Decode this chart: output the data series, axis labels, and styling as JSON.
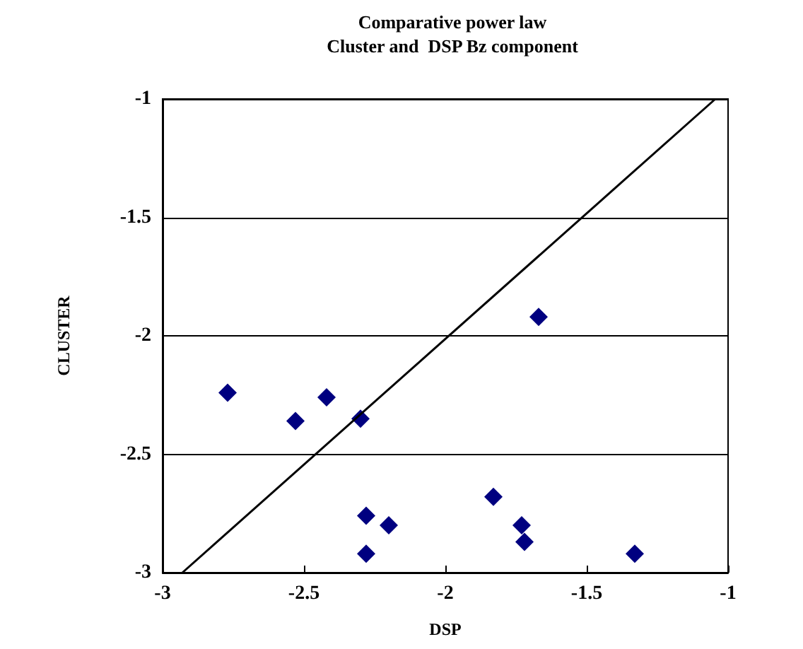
{
  "chart_data": {
    "type": "scatter",
    "title": "Comparative power law",
    "subtitle": "Cluster and  DSP Bz component",
    "xlabel": "DSP",
    "ylabel": "CLUSTER",
    "xlim": [
      -3,
      -1
    ],
    "xticks": [
      -3,
      -2.5,
      -2,
      -1.5,
      -1
    ],
    "ylim": [
      -3,
      -1
    ],
    "yticks": [
      -3,
      -2.5,
      -2,
      -1.5,
      -1
    ],
    "grid": "y",
    "marker": "diamond",
    "series": [
      {
        "color": "#000080",
        "x": [
          -2.77,
          -2.53,
          -2.42,
          -2.3,
          -1.67,
          -2.28,
          -2.2,
          -2.28,
          -1.83,
          -1.73,
          -1.72,
          -1.33
        ],
        "values": [
          -2.24,
          -2.36,
          -2.26,
          -2.35,
          -1.92,
          -2.76,
          -2.8,
          -2.92,
          -2.68,
          -2.8,
          -2.87,
          -2.92
        ]
      },
      {
        "type": "line",
        "color": "#000000",
        "marker": "none",
        "x": [
          -2.93,
          -1.045
        ],
        "values": [
          -3,
          -1
        ]
      }
    ]
  }
}
